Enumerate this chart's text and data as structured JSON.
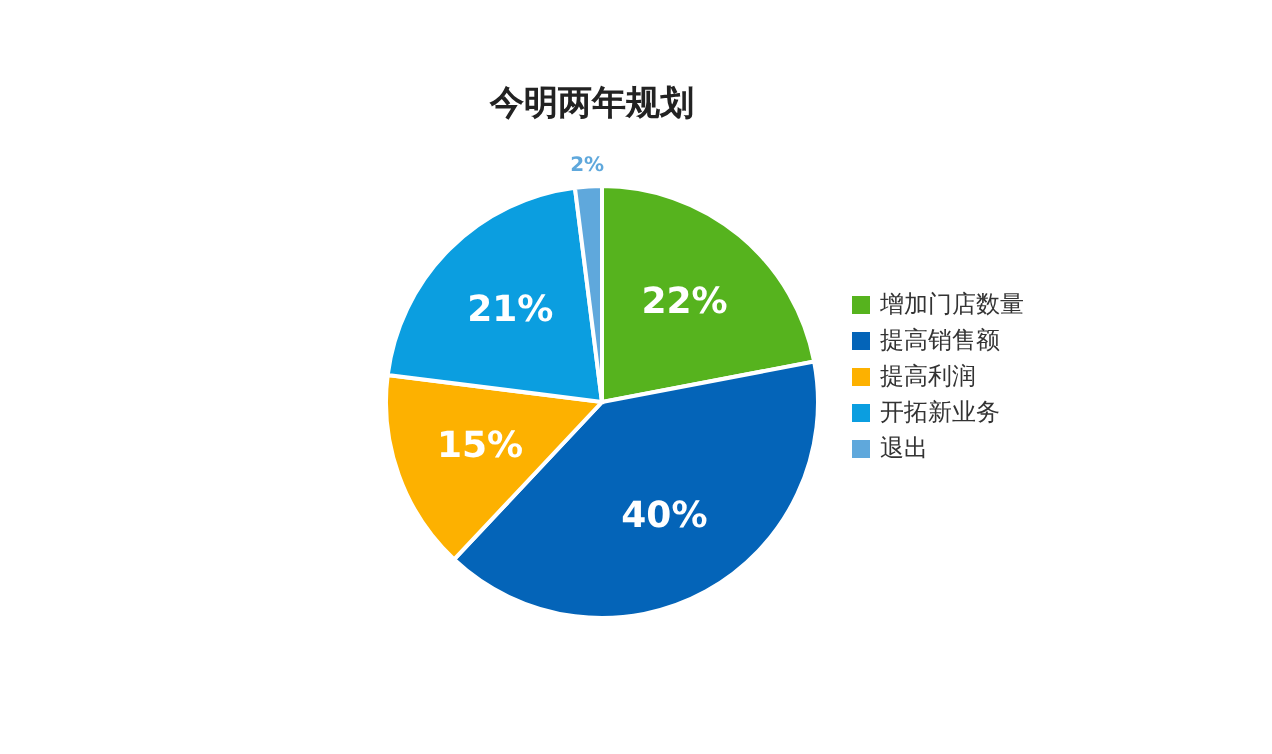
{
  "chart_data": {
    "type": "pie",
    "title": "今明两年规划",
    "categories": [
      "增加门店数量",
      "提高销售额",
      "提高利润",
      "开拓新业务",
      "退出"
    ],
    "values": [
      22,
      40,
      15,
      21,
      2
    ],
    "value_labels": [
      "22%",
      "40%",
      "15%",
      "21%",
      "2%"
    ],
    "colors": [
      "#56b31e",
      "#0464b8",
      "#fdb100",
      "#0b9ee0",
      "#5fa8dc"
    ],
    "legend": "right"
  }
}
